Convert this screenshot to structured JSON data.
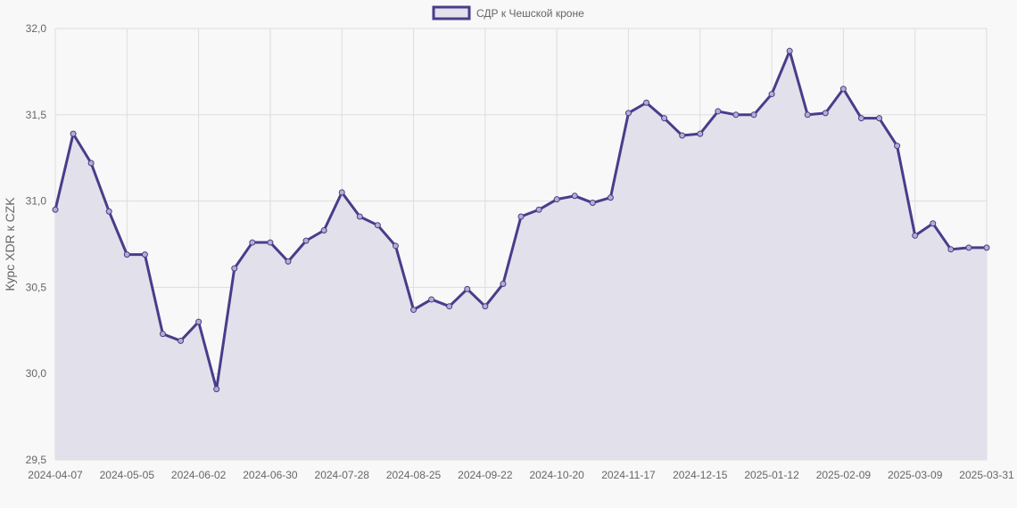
{
  "chart_data": {
    "type": "line",
    "legend": {
      "label": "СДР к Чешской кроне",
      "position": "top-center"
    },
    "ylabel": "Курс XDR к CZK",
    "xlabel": "",
    "ylim": [
      29.5,
      32.0
    ],
    "yticks": [
      "29,5",
      "30,0",
      "30,5",
      "31,0",
      "31,5",
      "32,0"
    ],
    "yticks_values": [
      29.5,
      30.0,
      30.5,
      31.0,
      31.5,
      32.0
    ],
    "xticks": [
      "2024-04-07",
      "2024-05-05",
      "2024-06-02",
      "2024-06-30",
      "2024-07-28",
      "2024-08-25",
      "2024-09-22",
      "2024-10-20",
      "2024-11-17",
      "2024-12-15",
      "2025-01-12",
      "2025-02-09",
      "2025-03-09",
      "2025-03-31"
    ],
    "xticks_index": [
      0,
      4,
      8,
      12,
      16,
      20,
      24,
      28,
      32,
      36,
      40,
      44,
      48,
      52
    ],
    "grid": true,
    "colors": {
      "line": "#483d8b",
      "fill": "#e2e0ea",
      "grid": "#dddddd",
      "axis_text": "#666666"
    },
    "series": [
      {
        "name": "СДР к Чешской кроне",
        "values": [
          30.95,
          31.39,
          31.22,
          30.94,
          30.69,
          30.69,
          30.23,
          30.19,
          30.3,
          29.91,
          30.61,
          30.76,
          30.76,
          30.65,
          30.77,
          30.83,
          31.05,
          30.91,
          30.86,
          30.74,
          30.37,
          30.43,
          30.39,
          30.49,
          30.39,
          30.52,
          30.91,
          30.95,
          31.01,
          31.03,
          30.99,
          31.02,
          31.51,
          31.57,
          31.48,
          31.38,
          31.39,
          31.52,
          31.5,
          31.5,
          31.62,
          31.87,
          31.5,
          31.51,
          31.65,
          31.48,
          31.48,
          31.32,
          30.8,
          30.87,
          30.72,
          30.73,
          30.73
        ]
      }
    ]
  }
}
